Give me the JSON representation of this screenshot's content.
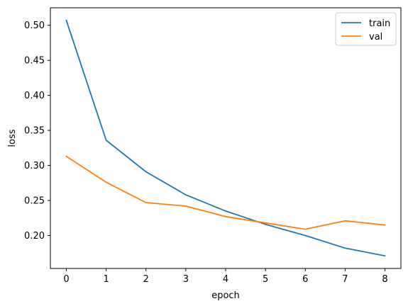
{
  "chart_data": {
    "type": "line",
    "title": "",
    "xlabel": "epoch",
    "ylabel": "loss",
    "x": [
      0,
      1,
      2,
      3,
      4,
      5,
      6,
      7,
      8
    ],
    "xlim": [
      -0.4,
      8.4
    ],
    "ylim": [
      0.153,
      0.525
    ],
    "xticks": [
      0,
      1,
      2,
      3,
      4,
      5,
      6,
      7,
      8
    ],
    "yticks": [
      0.2,
      0.25,
      0.3,
      0.35,
      0.4,
      0.45,
      0.5
    ],
    "ytick_labels": [
      "0.20",
      "0.25",
      "0.30",
      "0.35",
      "0.40",
      "0.45",
      "0.50"
    ],
    "grid": false,
    "legend_position": "top-right",
    "series": [
      {
        "name": "train",
        "color": "#1f77b4",
        "values": [
          0.507,
          0.336,
          0.291,
          0.258,
          0.235,
          0.216,
          0.2,
          0.182,
          0.171
        ]
      },
      {
        "name": "val",
        "color": "#ff7f0e",
        "values": [
          0.313,
          0.276,
          0.247,
          0.242,
          0.227,
          0.218,
          0.209,
          0.221,
          0.215
        ]
      }
    ]
  }
}
